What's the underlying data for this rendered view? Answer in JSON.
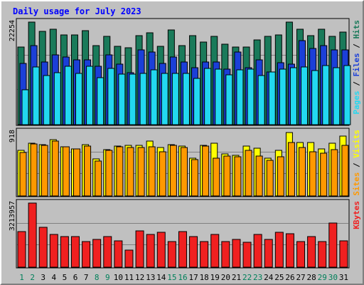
{
  "chart_data": {
    "type": "bar",
    "title": "Daily usage for July 2023",
    "categories": [
      "1",
      "2",
      "3",
      "4",
      "5",
      "6",
      "7",
      "8",
      "9",
      "10",
      "11",
      "12",
      "13",
      "14",
      "15",
      "16",
      "17",
      "18",
      "19",
      "20",
      "21",
      "22",
      "23",
      "24",
      "25",
      "26",
      "27",
      "28",
      "29",
      "30",
      "31"
    ],
    "weekend_days": [
      "1",
      "2",
      "8",
      "9",
      "15",
      "16",
      "22",
      "23",
      "29",
      "30"
    ],
    "panels": [
      {
        "name": "requests",
        "ymax_label": "22254",
        "ymax": 22254,
        "series": [
          {
            "name": "Hits",
            "color": "#1a7a5a",
            "values": [
              16870,
              22254,
              20175,
              20700,
              19420,
              19420,
              20420,
              17140,
              19160,
              17000,
              16740,
              19350,
              19940,
              16940,
              20500,
              17200,
              19330,
              18000,
              19160,
              17500,
              16900,
              16880,
              18380,
              19160,
              19520,
              22254,
              20775,
              19390,
              20725,
              19160,
              20060
            ]
          },
          {
            "name": "Files",
            "color": "#1b3fd8",
            "values": [
              13340,
              17140,
              13610,
              15140,
              14730,
              14060,
              14060,
              12720,
              15140,
              13070,
              11320,
              16270,
              15820,
              13270,
              14730,
              13610,
              12390,
              13610,
              13610,
              12060,
              15820,
              12390,
              14060,
              11400,
              13400,
              13070,
              18270,
              16480,
              17140,
              16270,
              16270
            ]
          },
          {
            "name": "Pages",
            "color": "#22d8f0",
            "values": [
              7600,
              12520,
              10730,
              11330,
              12660,
              11060,
              12720,
              10170,
              12190,
              10920,
              11020,
              11190,
              11860,
              11060,
              11060,
              11060,
              10070,
              12200,
              12000,
              10750,
              11860,
              12060,
              10730,
              11400,
              12060,
              12390,
              12500,
              11730,
              12870,
              12390,
              12870
            ]
          }
        ]
      },
      {
        "name": "visits",
        "ymax_label": "918",
        "ymax": 918,
        "series": [
          {
            "name": "Visits",
            "color": "#ffff00",
            "values": [
              648,
              754,
              738,
              804,
              701,
              675,
              738,
              528,
              663,
              714,
              721,
              721,
              783,
              691,
              738,
              714,
              541,
              725,
              754,
              599,
              584,
              714,
              684,
              540,
              649,
              910,
              770,
              770,
              675,
              754,
              856
            ]
          },
          {
            "name": "Sites",
            "color": "#ff9900",
            "values": [
              627,
              745,
              724,
              782,
              704,
              671,
              717,
              504,
              651,
              700,
              698,
              698,
              699,
              631,
              728,
              693,
              516,
              717,
              540,
              570,
              562,
              648,
              572,
              512,
              560,
              763,
              693,
              628,
              616,
              662,
              724
            ]
          }
        ]
      },
      {
        "name": "kbytes",
        "ymax_label": "3213957",
        "ymax": 3213957,
        "series": [
          {
            "name": "KBytes",
            "color": "#f02020",
            "values": [
              1781720,
              3213957,
              2011690,
              1643790,
              1528834,
              1540329,
              1287438,
              1402384,
              1540329,
              1310426,
              855102,
              1815626,
              1632296,
              1747243,
              1298932,
              1781720,
              1540329,
              1275942,
              1655290,
              1287438,
              1403546,
              1264450,
              1643790,
              1379390,
              1747243,
              1666782,
              1298932,
              1540329,
              1275942,
              2218602,
              1333414
            ]
          }
        ]
      }
    ]
  }
}
